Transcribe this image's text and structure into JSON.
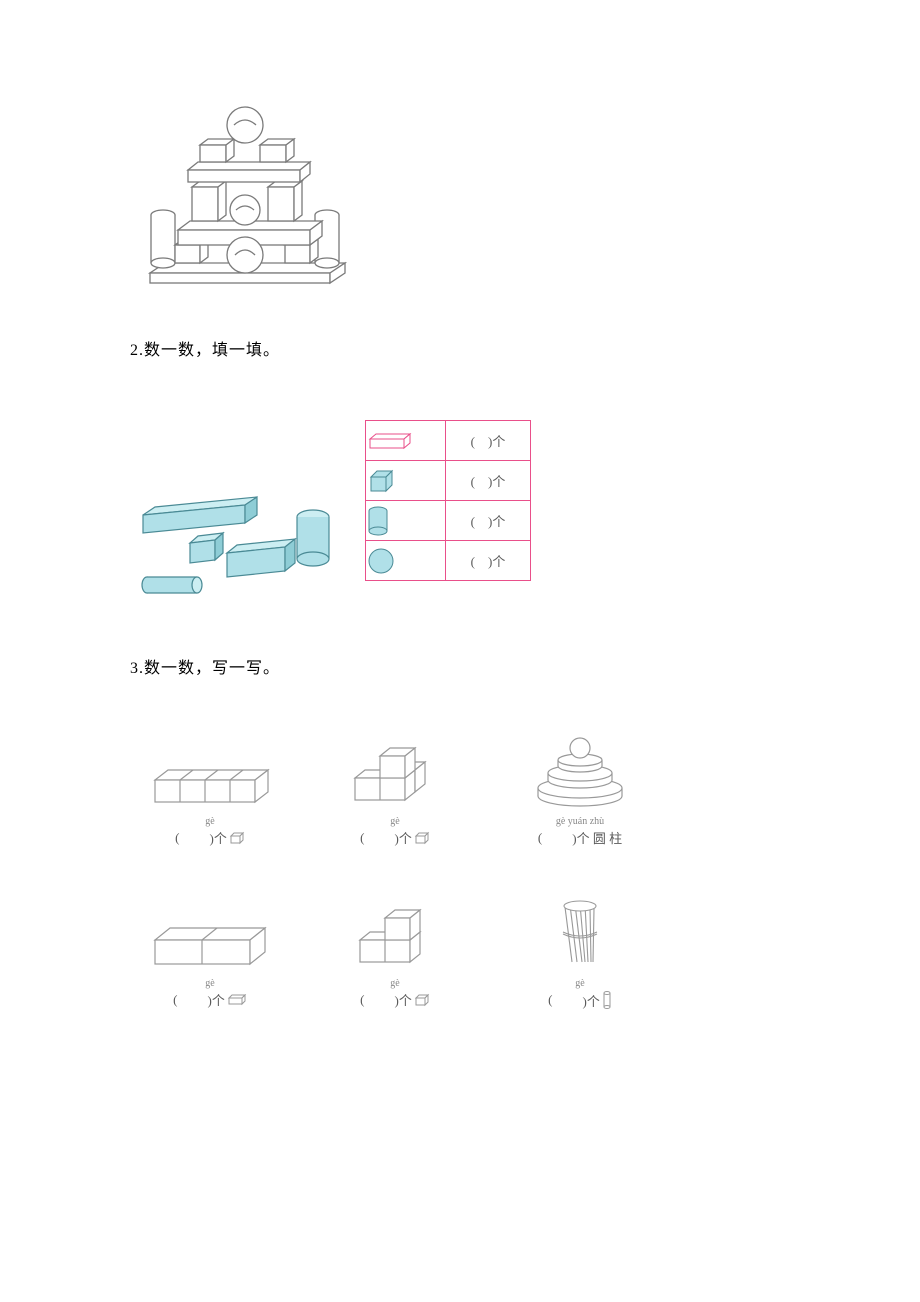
{
  "q1": {
    "stroke": "#7a7a7a",
    "fill": "#ffffff"
  },
  "q2": {
    "label": "2.数一数，填一填。",
    "shape_fill": "#b0e0e8",
    "shape_stroke": "#4a8a95",
    "table_border": "#e94f8a",
    "count_template": "(　)个",
    "rows": [
      {
        "shape": "cuboid"
      },
      {
        "shape": "cube"
      },
      {
        "shape": "cylinder"
      },
      {
        "shape": "sphere"
      }
    ]
  },
  "q3": {
    "label": "3.数一数，写一写。",
    "stroke": "#999999",
    "items": [
      {
        "pinyin": "gè",
        "label_pre": "(",
        "label_post": ")个",
        "icon": "cube"
      },
      {
        "pinyin": "gè",
        "label_pre": "(",
        "label_post": ")个",
        "icon": "cube"
      },
      {
        "pinyin": "gè yuán zhù",
        "label_pre": "(",
        "label_post": ")个 圆 柱",
        "icon": "none"
      },
      {
        "pinyin": "gè",
        "label_pre": "(",
        "label_post": ")个",
        "icon": "cuboid"
      },
      {
        "pinyin": "gè",
        "label_pre": "(",
        "label_post": ")个",
        "icon": "cube"
      },
      {
        "pinyin": "gè",
        "label_pre": "(",
        "label_post": ")个",
        "icon": "cylinder"
      }
    ]
  },
  "colors": {
    "text": "#000000",
    "muted": "#5a5a5a",
    "bg": "#ffffff"
  }
}
